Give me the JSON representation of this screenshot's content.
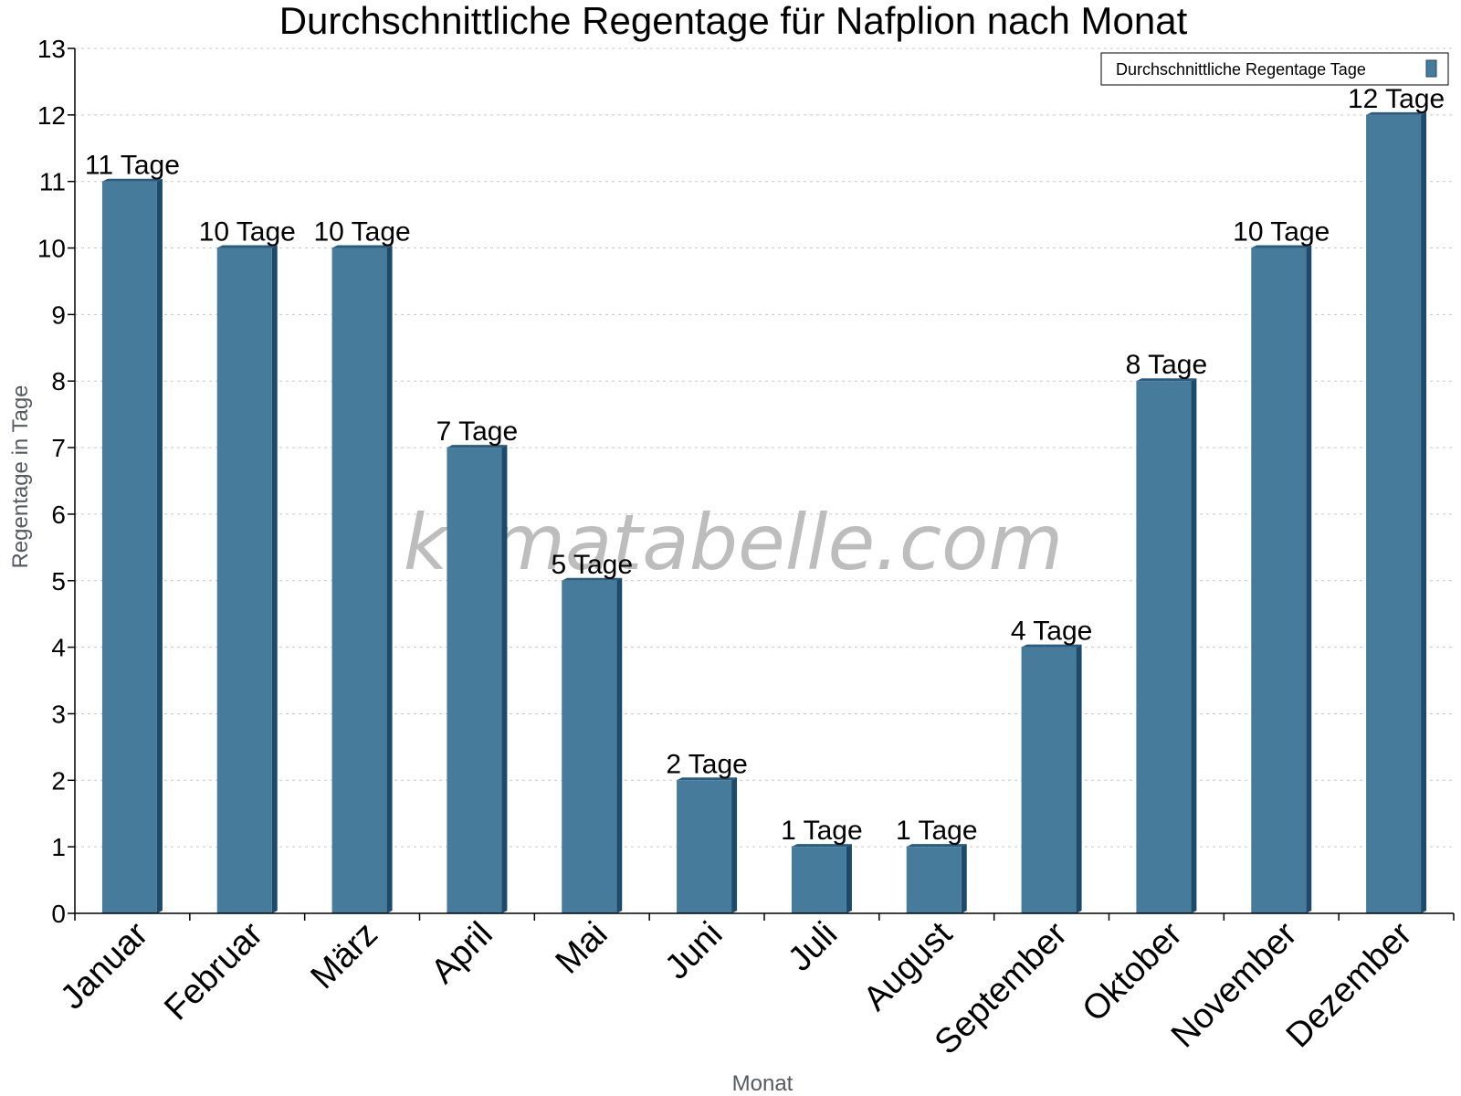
{
  "chart_data": {
    "type": "bar",
    "title": "Durchschnittliche Regentage für Nafplion nach Monat",
    "xlabel": "Monat",
    "ylabel": "Regentage in Tage",
    "categories": [
      "Januar",
      "Februar",
      "März",
      "April",
      "Mai",
      "Juni",
      "Juli",
      "August",
      "September",
      "Oktober",
      "November",
      "Dezember"
    ],
    "series": [
      {
        "name": "Durchschnittliche Regentage Tage",
        "values": [
          11,
          10,
          10,
          7,
          5,
          2,
          1,
          1,
          4,
          8,
          10,
          12
        ],
        "data_labels": [
          "11 Tage",
          "10 Tage",
          "10 Tage",
          "7 Tage",
          "5 Tage",
          "2 Tage",
          "1 Tage",
          "1 Tage",
          "4 Tage",
          "8 Tage",
          "10 Tage",
          "12 Tage"
        ]
      }
    ],
    "ylim": [
      0,
      13
    ],
    "yticks": [
      0,
      1,
      2,
      3,
      4,
      5,
      6,
      7,
      8,
      9,
      10,
      11,
      12,
      13
    ],
    "grid": true,
    "legend_position": "top-right",
    "watermark": "klimatabelle.com",
    "colors": {
      "bar_front": "#467b9c",
      "bar_side": "#1b4a6b",
      "bar_top": "#2a5c7e",
      "grid": "#c8c8c8",
      "axis": "#000000"
    }
  }
}
